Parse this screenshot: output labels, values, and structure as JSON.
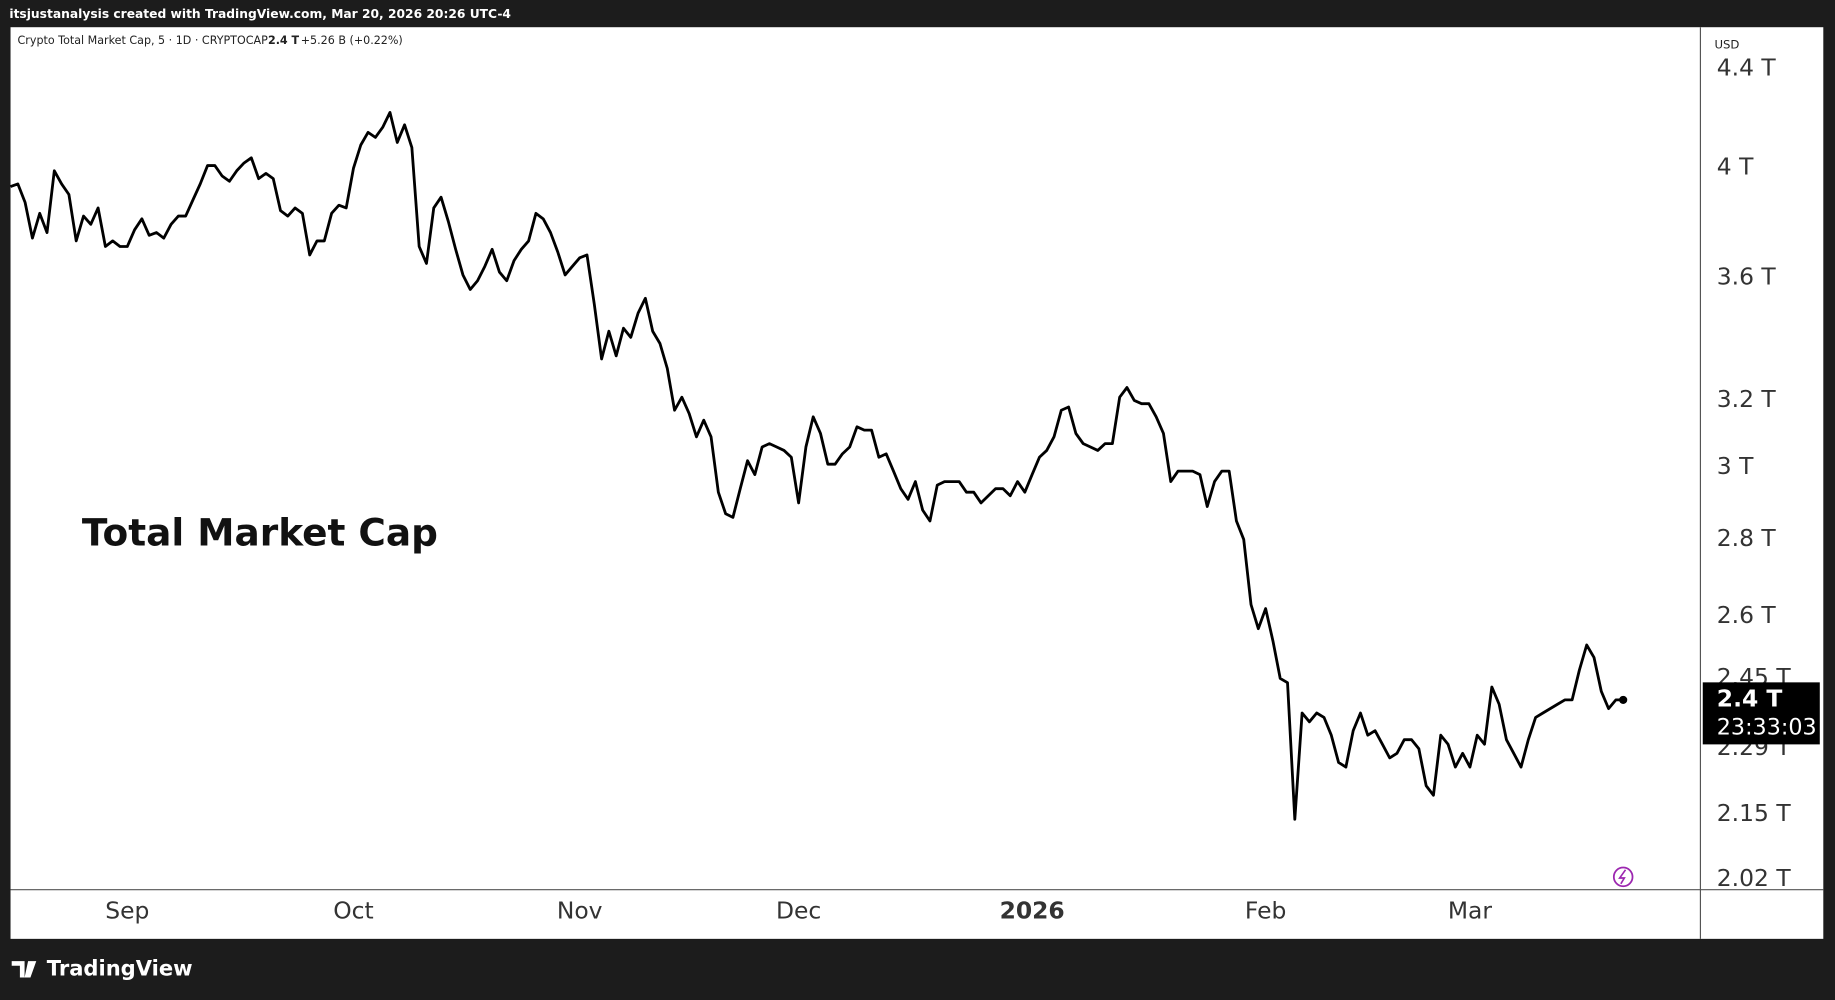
{
  "header": {
    "credit": "itsjustanalysis created with TradingView.com, Mar 20, 2026 20:26 UTC-4"
  },
  "footer": {
    "brand": "TradingView"
  },
  "chart_data": {
    "type": "line",
    "symbol_info": "Crypto Total Market Cap, 5 · 1D · CRYPTOCAP",
    "last_label": "2.4 T",
    "change_label": "+5.26 B (+0.22%)",
    "countdown": "23:33:03",
    "axis_unit": "USD",
    "annotation": "Total Market Cap",
    "color": "#000000",
    "log_scale": true,
    "grid": false,
    "ylim": [
      2.0,
      4.58
    ],
    "yticks": [
      {
        "value": 4.4,
        "label": "4.4 T"
      },
      {
        "value": 4,
        "label": "4 T"
      },
      {
        "value": 3.6,
        "label": "3.6 T"
      },
      {
        "value": 3.2,
        "label": "3.2 T"
      },
      {
        "value": 3,
        "label": "3 T"
      },
      {
        "value": 2.8,
        "label": "2.8 T"
      },
      {
        "value": 2.6,
        "label": "2.6 T"
      },
      {
        "value": 2.45,
        "label": "2.45 T"
      },
      {
        "value": 2.29,
        "label": "2.29 T"
      },
      {
        "value": 2.15,
        "label": "2.15 T"
      },
      {
        "value": 2.02,
        "label": "2.02 T"
      }
    ],
    "categories": [
      null,
      null,
      null,
      null,
      null,
      null,
      null,
      null,
      null,
      null,
      null,
      null,
      null,
      null,
      null,
      null,
      "Sep",
      null,
      null,
      null,
      null,
      null,
      null,
      null,
      null,
      null,
      null,
      null,
      null,
      null,
      null,
      null,
      null,
      null,
      null,
      null,
      null,
      null,
      null,
      null,
      null,
      null,
      null,
      null,
      null,
      null,
      null,
      "Oct",
      null,
      null,
      null,
      null,
      null,
      null,
      null,
      null,
      null,
      null,
      null,
      null,
      null,
      null,
      null,
      null,
      null,
      null,
      null,
      null,
      null,
      null,
      null,
      null,
      null,
      null,
      null,
      null,
      null,
      null,
      "Nov",
      null,
      null,
      null,
      null,
      null,
      null,
      null,
      null,
      null,
      null,
      null,
      null,
      null,
      null,
      null,
      null,
      null,
      null,
      null,
      null,
      null,
      null,
      null,
      null,
      null,
      null,
      null,
      null,
      null,
      "Dec",
      null,
      null,
      null,
      null,
      null,
      null,
      null,
      null,
      null,
      null,
      null,
      null,
      null,
      null,
      null,
      null,
      null,
      null,
      null,
      null,
      null,
      null,
      null,
      null,
      null,
      null,
      null,
      null,
      null,
      null,
      null,
      "2026",
      null,
      null,
      null,
      null,
      null,
      null,
      null,
      null,
      null,
      null,
      null,
      null,
      null,
      null,
      null,
      null,
      null,
      null,
      null,
      null,
      null,
      null,
      null,
      null,
      null,
      null,
      null,
      null,
      null,
      null,
      null,
      "Feb",
      null,
      null,
      null,
      null,
      null,
      null,
      null,
      null,
      null,
      null,
      null,
      null,
      null,
      null,
      null,
      null,
      null,
      null,
      null,
      null,
      null,
      null,
      null,
      null,
      null,
      null,
      null,
      "Mar",
      null,
      null,
      null,
      null,
      null,
      null,
      null,
      null,
      null,
      null,
      null,
      null,
      null,
      null,
      null,
      null,
      null,
      null,
      null,
      null,
      null
    ],
    "values": [
      3.93,
      3.94,
      3.87,
      3.74,
      3.83,
      3.76,
      3.99,
      3.94,
      3.9,
      3.73,
      3.82,
      3.79,
      3.85,
      3.71,
      3.73,
      3.71,
      3.71,
      3.77,
      3.81,
      3.75,
      3.76,
      3.74,
      3.79,
      3.82,
      3.82,
      3.88,
      3.94,
      4.01,
      4.01,
      3.97,
      3.95,
      3.99,
      4.02,
      4.04,
      3.96,
      3.98,
      3.96,
      3.84,
      3.82,
      3.85,
      3.83,
      3.68,
      3.73,
      3.73,
      3.83,
      3.86,
      3.85,
      4.0,
      4.09,
      4.14,
      4.12,
      4.16,
      4.22,
      4.1,
      4.17,
      4.08,
      3.71,
      3.65,
      3.85,
      3.89,
      3.8,
      3.7,
      3.61,
      3.56,
      3.59,
      3.64,
      3.7,
      3.62,
      3.59,
      3.66,
      3.7,
      3.73,
      3.83,
      3.81,
      3.76,
      3.69,
      3.61,
      3.64,
      3.67,
      3.68,
      3.51,
      3.33,
      3.42,
      3.34,
      3.43,
      3.4,
      3.48,
      3.53,
      3.42,
      3.38,
      3.3,
      3.17,
      3.21,
      3.16,
      3.09,
      3.14,
      3.09,
      2.93,
      2.87,
      2.86,
      2.94,
      3.02,
      2.98,
      3.06,
      3.07,
      3.06,
      3.05,
      3.03,
      2.9,
      3.06,
      3.15,
      3.1,
      3.01,
      3.01,
      3.04,
      3.06,
      3.12,
      3.11,
      3.11,
      3.03,
      3.04,
      2.99,
      2.94,
      2.91,
      2.96,
      2.88,
      2.85,
      2.95,
      2.96,
      2.96,
      2.96,
      2.93,
      2.93,
      2.9,
      2.92,
      2.94,
      2.94,
      2.92,
      2.96,
      2.93,
      2.98,
      3.03,
      3.05,
      3.09,
      3.17,
      3.18,
      3.1,
      3.07,
      3.06,
      3.05,
      3.07,
      3.07,
      3.21,
      3.24,
      3.2,
      3.19,
      3.19,
      3.15,
      3.1,
      2.96,
      2.99,
      2.99,
      2.99,
      2.98,
      2.89,
      2.96,
      2.99,
      2.99,
      2.85,
      2.8,
      2.63,
      2.57,
      2.62,
      2.54,
      2.45,
      2.44,
      2.14,
      2.37,
      2.35,
      2.37,
      2.36,
      2.32,
      2.26,
      2.25,
      2.33,
      2.37,
      2.32,
      2.33,
      2.3,
      2.27,
      2.28,
      2.31,
      2.31,
      2.29,
      2.21,
      2.19,
      2.32,
      2.3,
      2.25,
      2.28,
      2.25,
      2.32,
      2.3,
      2.43,
      2.39,
      2.31,
      2.28,
      2.25,
      2.31,
      2.36,
      2.37,
      2.38,
      2.39,
      2.4,
      2.4,
      2.47,
      2.53,
      2.5,
      2.42,
      2.38,
      2.4,
      2.4
    ]
  }
}
